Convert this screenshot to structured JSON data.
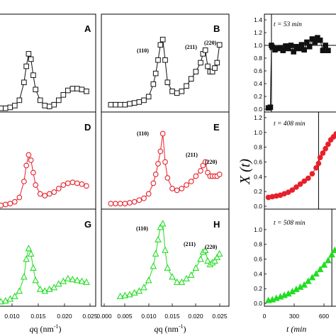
{
  "colors": {
    "black": "#111111",
    "red": "#e8202a",
    "green": "#22dd22",
    "axis": "#000000"
  },
  "saxs_panels": {
    "x_ticks": [
      "0.010",
      "0.015",
      "0.020",
      "0.025",
      "0.000",
      "0.005",
      "0.010",
      "0.015",
      "0.020",
      "0.025"
    ],
    "x_label": "q (nm",
    "x_label_sup": "-1",
    "x_label_tail": ")"
  },
  "kinetics_panels": {
    "y_label": "X (t)",
    "x_label": "t (min",
    "x_ticks": [
      "0",
      "300",
      "600"
    ],
    "times": [
      "t = 53 min",
      "t = 408 min",
      "t = 508 min"
    ]
  },
  "chart_data": [
    {
      "type": "scatter",
      "panel": "A",
      "series": [
        {
          "marker": "open-square",
          "color": "#111111"
        }
      ],
      "x": [
        0.0055,
        0.0065,
        0.0075,
        0.0085,
        0.0095,
        0.0105,
        0.0115,
        0.012,
        0.0125,
        0.013,
        0.0135,
        0.014,
        0.015,
        0.016,
        0.017,
        0.018,
        0.019,
        0.02,
        0.021,
        0.022,
        0.023,
        0.024,
        0.025
      ],
      "y": [
        0.01,
        0.01,
        0.01,
        0.02,
        0.04,
        0.1,
        0.3,
        0.48,
        0.62,
        0.56,
        0.38,
        0.22,
        0.1,
        0.04,
        0.03,
        0.05,
        0.1,
        0.16,
        0.21,
        0.23,
        0.23,
        0.22,
        0.2
      ],
      "xlim": [
        0.006,
        0.027
      ],
      "ylim": [
        0,
        1
      ]
    },
    {
      "type": "scatter",
      "panel": "B",
      "series": [
        {
          "marker": "open-square",
          "color": "#111111"
        }
      ],
      "x": [
        0.002,
        0.003,
        0.004,
        0.005,
        0.006,
        0.007,
        0.008,
        0.009,
        0.01,
        0.011,
        0.0115,
        0.012,
        0.0125,
        0.013,
        0.0135,
        0.014,
        0.015,
        0.016,
        0.017,
        0.018,
        0.019,
        0.02,
        0.021,
        0.0215,
        0.022,
        0.0225,
        0.023,
        0.0235,
        0.024,
        0.0245,
        0.025
      ],
      "y": [
        0.05,
        0.05,
        0.05,
        0.05,
        0.06,
        0.07,
        0.08,
        0.1,
        0.14,
        0.28,
        0.4,
        0.55,
        0.72,
        0.78,
        0.55,
        0.3,
        0.2,
        0.18,
        0.2,
        0.26,
        0.34,
        0.42,
        0.52,
        0.62,
        0.66,
        0.48,
        0.42,
        0.42,
        0.46,
        0.52,
        0.72
      ],
      "annotations": [
        "(110)",
        "(211)",
        "(220)"
      ],
      "xlim": [
        0,
        0.027
      ],
      "ylim": [
        0,
        1
      ]
    },
    {
      "type": "scatter",
      "panel": "D",
      "series": [
        {
          "marker": "open-circle",
          "color": "#e8202a"
        }
      ],
      "x": [
        0.0055,
        0.0065,
        0.0075,
        0.0085,
        0.0095,
        0.0105,
        0.0115,
        0.012,
        0.0125,
        0.013,
        0.0135,
        0.014,
        0.015,
        0.016,
        0.017,
        0.018,
        0.019,
        0.02,
        0.021,
        0.022,
        0.023,
        0.024,
        0.025
      ],
      "y": [
        0.01,
        0.01,
        0.02,
        0.03,
        0.05,
        0.1,
        0.28,
        0.46,
        0.58,
        0.52,
        0.38,
        0.24,
        0.14,
        0.12,
        0.14,
        0.16,
        0.2,
        0.24,
        0.26,
        0.27,
        0.26,
        0.25,
        0.23
      ],
      "xlim": [
        0.006,
        0.027
      ],
      "ylim": [
        0,
        1
      ]
    },
    {
      "type": "scatter",
      "panel": "E",
      "series": [
        {
          "marker": "open-circle",
          "color": "#e8202a"
        }
      ],
      "x": [
        0.002,
        0.003,
        0.004,
        0.005,
        0.006,
        0.007,
        0.008,
        0.009,
        0.01,
        0.011,
        0.0115,
        0.012,
        0.0125,
        0.013,
        0.0135,
        0.014,
        0.015,
        0.016,
        0.017,
        0.018,
        0.019,
        0.02,
        0.021,
        0.0215,
        0.022,
        0.0225,
        0.023,
        0.0235,
        0.024,
        0.0245,
        0.025
      ],
      "y": [
        0.03,
        0.03,
        0.03,
        0.03,
        0.04,
        0.05,
        0.07,
        0.09,
        0.14,
        0.26,
        0.36,
        0.48,
        0.62,
        0.82,
        0.5,
        0.32,
        0.2,
        0.18,
        0.2,
        0.24,
        0.28,
        0.34,
        0.4,
        0.46,
        0.5,
        0.38,
        0.34,
        0.34,
        0.34,
        0.34,
        0.36
      ],
      "annotations": [
        "(110)",
        "(211)",
        "(220)"
      ],
      "xlim": [
        0,
        0.027
      ],
      "ylim": [
        0,
        1
      ]
    },
    {
      "type": "scatter",
      "panel": "G",
      "series": [
        {
          "marker": "open-triangle",
          "color": "#22dd22"
        }
      ],
      "x": [
        0.0055,
        0.0065,
        0.0075,
        0.0085,
        0.0095,
        0.0105,
        0.0115,
        0.012,
        0.0125,
        0.013,
        0.0135,
        0.014,
        0.015,
        0.016,
        0.017,
        0.018,
        0.019,
        0.02,
        0.021,
        0.022,
        0.023,
        0.024,
        0.025
      ],
      "y": [
        0.02,
        0.02,
        0.03,
        0.05,
        0.08,
        0.14,
        0.3,
        0.5,
        0.62,
        0.56,
        0.4,
        0.26,
        0.16,
        0.14,
        0.16,
        0.18,
        0.22,
        0.25,
        0.28,
        0.27,
        0.26,
        0.25,
        0.24
      ],
      "xlim": [
        0.006,
        0.027
      ],
      "ylim": [
        0,
        1
      ]
    },
    {
      "type": "scatter",
      "panel": "H",
      "series": [
        {
          "marker": "open-triangle",
          "color": "#22dd22"
        }
      ],
      "x": [
        0.004,
        0.005,
        0.006,
        0.007,
        0.008,
        0.009,
        0.01,
        0.011,
        0.0115,
        0.012,
        0.0125,
        0.013,
        0.0135,
        0.014,
        0.015,
        0.016,
        0.017,
        0.018,
        0.019,
        0.02,
        0.021,
        0.0215,
        0.022,
        0.0225,
        0.023,
        0.0235,
        0.024,
        0.0245,
        0.025
      ],
      "y": [
        0.08,
        0.09,
        0.1,
        0.12,
        0.14,
        0.18,
        0.26,
        0.42,
        0.56,
        0.72,
        0.86,
        0.9,
        0.6,
        0.4,
        0.3,
        0.24,
        0.24,
        0.28,
        0.32,
        0.4,
        0.5,
        0.58,
        0.6,
        0.48,
        0.44,
        0.46,
        0.48,
        0.52,
        0.56
      ],
      "annotations": [
        "(110)",
        "(211)",
        "(220)"
      ],
      "xlim": [
        0,
        0.027
      ],
      "ylim": [
        0,
        1
      ]
    },
    {
      "type": "scatter",
      "panel": "X-top",
      "series": [
        {
          "marker": "filled-square",
          "color": "#111111"
        }
      ],
      "x": [
        30,
        45,
        53,
        60,
        80,
        100,
        120,
        140,
        160,
        180,
        200,
        220,
        240,
        260,
        280,
        300,
        320,
        340,
        360,
        380,
        400,
        420,
        440,
        460,
        480
      ],
      "y": [
        0.02,
        0.03,
        1.0,
        0.97,
        0.93,
        0.95,
        0.96,
        0.92,
        0.99,
        0.95,
        1.0,
        0.9,
        0.98,
        0.95,
        1.01,
        0.93,
        1.05,
        0.98,
        1.1,
        1.05,
        1.12,
        1.08,
        0.92,
        1.0,
        0.92
      ],
      "xlim": [
        0,
        550
      ],
      "ylim": [
        0,
        1.4
      ],
      "yticks": [
        "0.0",
        "0.2",
        "0.4",
        "0.6",
        "0.8",
        "1.0",
        "1.2",
        "1.4"
      ]
    },
    {
      "type": "scatter",
      "panel": "X-mid",
      "series": [
        {
          "marker": "filled-circle",
          "color": "#e8202a"
        }
      ],
      "x": [
        30,
        60,
        90,
        120,
        150,
        180,
        210,
        240,
        270,
        300,
        330,
        360,
        390,
        408,
        420,
        440,
        460,
        480,
        500,
        520,
        540
      ],
      "y": [
        0.12,
        0.13,
        0.14,
        0.15,
        0.17,
        0.19,
        0.22,
        0.26,
        0.3,
        0.34,
        0.38,
        0.44,
        0.52,
        0.58,
        0.66,
        0.72,
        0.78,
        0.84,
        0.9,
        0.94,
        0.98
      ],
      "xlim": [
        0,
        550
      ],
      "ylim": [
        0,
        1.2
      ],
      "yticks": [
        "0.0",
        "0.2",
        "0.4",
        "0.6",
        "0.8",
        "1.0",
        "1.2"
      ]
    },
    {
      "type": "scatter",
      "panel": "X-bot",
      "series": [
        {
          "marker": "filled-triangle",
          "color": "#22dd22"
        }
      ],
      "x": [
        30,
        60,
        90,
        120,
        150,
        180,
        210,
        240,
        270,
        300,
        330,
        360,
        390,
        420,
        450,
        480,
        508,
        530
      ],
      "y": [
        0.04,
        0.05,
        0.07,
        0.09,
        0.11,
        0.13,
        0.16,
        0.19,
        0.22,
        0.25,
        0.3,
        0.35,
        0.4,
        0.46,
        0.52,
        0.58,
        0.66,
        0.72
      ],
      "xlim": [
        0,
        550
      ],
      "ylim": [
        0,
        1.2
      ],
      "yticks": [
        "0.0",
        "0.2",
        "0.4",
        "0.6",
        "0.8",
        "1.0"
      ]
    }
  ]
}
